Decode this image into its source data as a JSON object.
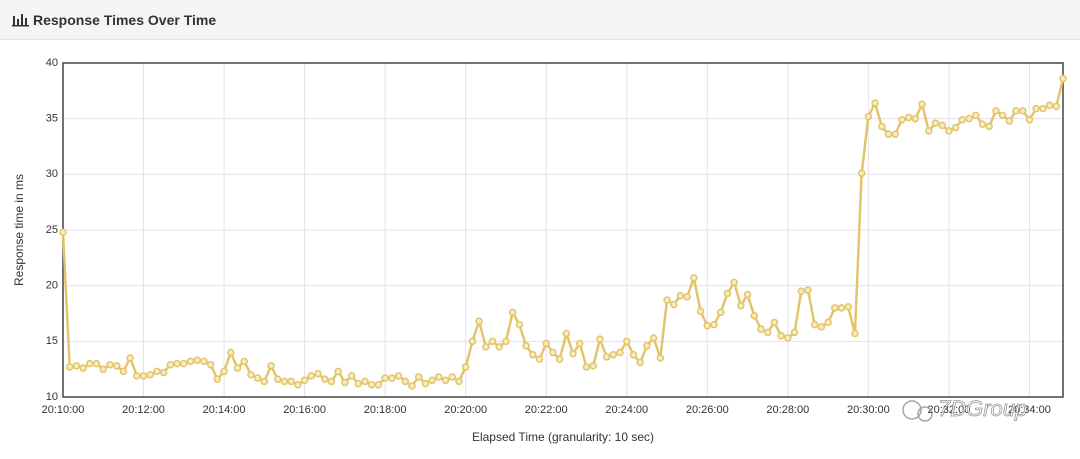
{
  "chart_data": {
    "type": "line",
    "title": "Response Times Over Time",
    "y_label": "Response time in ms",
    "x_label": "Elapsed Time (granularity: 10 sec)",
    "watermark": "7DGroup",
    "xlim": [
      "20:10:00",
      "20:34:50"
    ],
    "xticks": [
      "20:10:00",
      "20:12:00",
      "20:14:00",
      "20:16:00",
      "20:18:00",
      "20:20:00",
      "20:22:00",
      "20:24:00",
      "20:26:00",
      "20:28:00",
      "20:30:00",
      "20:32:00",
      "20:34:00"
    ],
    "ylim": [
      10,
      40
    ],
    "yticks": [
      10,
      15,
      20,
      25,
      30,
      35,
      40
    ],
    "grid": true,
    "x": [
      "20:10:00",
      "20:10:10",
      "20:10:20",
      "20:10:30",
      "20:10:40",
      "20:10:50",
      "20:11:00",
      "20:11:10",
      "20:11:20",
      "20:11:30",
      "20:11:40",
      "20:11:50",
      "20:12:00",
      "20:12:10",
      "20:12:20",
      "20:12:30",
      "20:12:40",
      "20:12:50",
      "20:13:00",
      "20:13:10",
      "20:13:20",
      "20:13:30",
      "20:13:40",
      "20:13:50",
      "20:14:00",
      "20:14:10",
      "20:14:20",
      "20:14:30",
      "20:14:40",
      "20:14:50",
      "20:15:00",
      "20:15:10",
      "20:15:20",
      "20:15:30",
      "20:15:40",
      "20:15:50",
      "20:16:00",
      "20:16:10",
      "20:16:20",
      "20:16:30",
      "20:16:40",
      "20:16:50",
      "20:17:00",
      "20:17:10",
      "20:17:20",
      "20:17:30",
      "20:17:40",
      "20:17:50",
      "20:18:00",
      "20:18:10",
      "20:18:20",
      "20:18:30",
      "20:18:40",
      "20:18:50",
      "20:19:00",
      "20:19:10",
      "20:19:20",
      "20:19:30",
      "20:19:40",
      "20:19:50",
      "20:20:00",
      "20:20:10",
      "20:20:20",
      "20:20:30",
      "20:20:40",
      "20:20:50",
      "20:21:00",
      "20:21:10",
      "20:21:20",
      "20:21:30",
      "20:21:40",
      "20:21:50",
      "20:22:00",
      "20:22:10",
      "20:22:20",
      "20:22:30",
      "20:22:40",
      "20:22:50",
      "20:23:00",
      "20:23:10",
      "20:23:20",
      "20:23:30",
      "20:23:40",
      "20:23:50",
      "20:24:00",
      "20:24:10",
      "20:24:20",
      "20:24:30",
      "20:24:40",
      "20:24:50",
      "20:25:00",
      "20:25:10",
      "20:25:20",
      "20:25:30",
      "20:25:40",
      "20:25:50",
      "20:26:00",
      "20:26:10",
      "20:26:20",
      "20:26:30",
      "20:26:40",
      "20:26:50",
      "20:27:00",
      "20:27:10",
      "20:27:20",
      "20:27:30",
      "20:27:40",
      "20:27:50",
      "20:28:00",
      "20:28:10",
      "20:28:20",
      "20:28:30",
      "20:28:40",
      "20:28:50",
      "20:29:00",
      "20:29:10",
      "20:29:20",
      "20:29:30",
      "20:29:40",
      "20:29:50",
      "20:30:00",
      "20:30:10",
      "20:30:20",
      "20:30:30",
      "20:30:40",
      "20:30:50",
      "20:31:00",
      "20:31:10",
      "20:31:20",
      "20:31:30",
      "20:31:40",
      "20:31:50",
      "20:32:00",
      "20:32:10",
      "20:32:20",
      "20:32:30",
      "20:32:40",
      "20:32:50",
      "20:33:00",
      "20:33:10",
      "20:33:20",
      "20:33:30",
      "20:33:40",
      "20:33:50",
      "20:34:00",
      "20:34:10",
      "20:34:20",
      "20:34:30",
      "20:34:40",
      "20:34:50"
    ],
    "series": [
      {
        "name": "Response time",
        "color": "#e2c56a",
        "values": [
          24.8,
          12.7,
          12.8,
          12.6,
          13.0,
          13.0,
          12.5,
          12.9,
          12.8,
          12.3,
          13.5,
          11.9,
          11.9,
          12.0,
          12.3,
          12.2,
          12.9,
          13.0,
          13.0,
          13.2,
          13.3,
          13.2,
          12.9,
          11.6,
          12.3,
          14.0,
          12.6,
          13.2,
          12.0,
          11.7,
          11.4,
          12.8,
          11.6,
          11.4,
          11.4,
          11.1,
          11.5,
          11.9,
          12.1,
          11.6,
          11.4,
          12.3,
          11.3,
          11.9,
          11.2,
          11.4,
          11.1,
          11.1,
          11.7,
          11.7,
          11.9,
          11.4,
          11.0,
          11.8,
          11.2,
          11.5,
          11.8,
          11.5,
          11.8,
          11.4,
          12.7,
          15.0,
          16.8,
          14.5,
          15.0,
          14.5,
          15.0,
          17.6,
          16.5,
          14.6,
          13.8,
          13.4,
          14.8,
          14.0,
          13.4,
          15.7,
          13.9,
          14.8,
          12.7,
          12.8,
          15.2,
          13.6,
          13.8,
          14.0,
          15.0,
          13.8,
          13.1,
          14.6,
          15.3,
          13.5,
          18.7,
          18.3,
          19.1,
          19.0,
          20.7,
          17.7,
          16.4,
          16.5,
          17.6,
          19.3,
          20.3,
          18.2,
          19.2,
          17.3,
          16.1,
          15.8,
          16.7,
          15.5,
          15.3,
          15.8,
          19.5,
          19.6,
          16.5,
          16.3,
          16.7,
          18.0,
          18.0,
          18.1,
          15.7,
          30.1,
          35.2,
          36.4,
          34.3,
          33.6,
          33.6,
          34.9,
          35.1,
          35.0,
          36.3,
          33.9,
          34.6,
          34.4,
          33.9,
          34.2,
          34.9,
          35.0,
          35.3,
          34.5,
          34.3,
          35.7,
          35.3,
          34.8,
          35.7,
          35.7,
          34.9,
          35.9,
          35.9,
          36.2,
          36.1,
          38.6
        ]
      }
    ]
  }
}
